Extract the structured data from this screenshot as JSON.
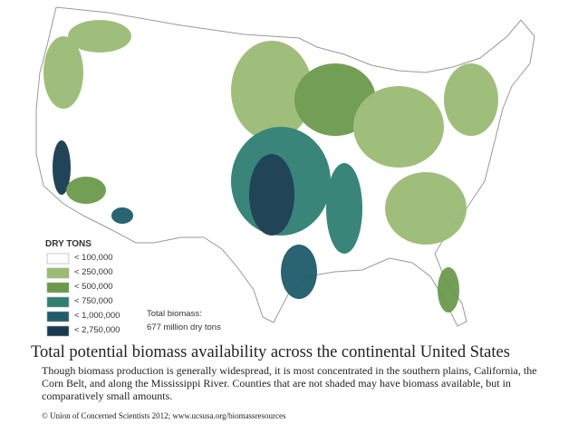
{
  "legend": {
    "title": "DRY TONS",
    "items": [
      {
        "label": "< 100,000",
        "color": "#ffffff"
      },
      {
        "label": "< 250,000",
        "color": "#9bbb74"
      },
      {
        "label": "< 500,000",
        "color": "#6b9a4c"
      },
      {
        "label": "< 750,000",
        "color": "#2f7f72"
      },
      {
        "label": "< 1,000,000",
        "color": "#1f5b6b"
      },
      {
        "label": "< 2,750,000",
        "color": "#173a4f"
      }
    ]
  },
  "total": {
    "label": "Total biomass:",
    "value": "677 million dry tons"
  },
  "caption": {
    "title": "Total potential biomass availability across the continental United States",
    "description": "Though biomass production is generally widespread, it is most concentrated in the southern plains, California, the Corn Belt, and along the Mississippi River. Counties that are not shaded may have biomass available, but in comparatively small amounts.",
    "credit": "© Union of Concerned Scientists  2012; www.ucsusa.org/biomassresources"
  }
}
